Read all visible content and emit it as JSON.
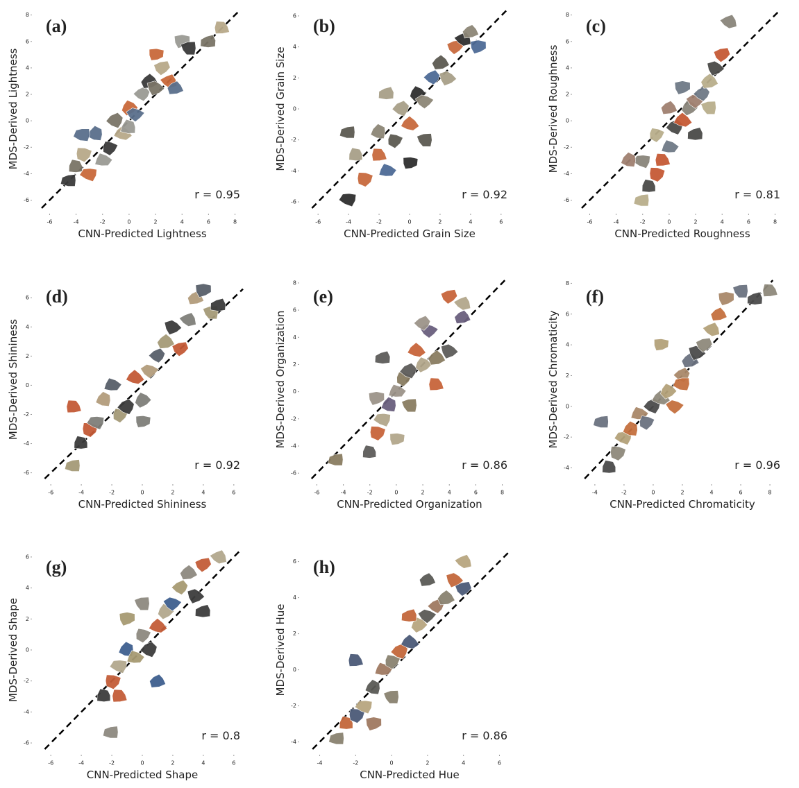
{
  "chart_data": [
    {
      "type": "scatter",
      "label": "(a)",
      "xlabel": "CNN-Predicted Lightness",
      "ylabel": "MDS-Derived Lightness",
      "annotation": "r = 0.95",
      "xlim": [
        -6.6,
        8.6
      ],
      "ylim": [
        -6.6,
        8.4
      ],
      "xticks": [
        -6,
        -4,
        -2,
        0,
        2,
        4,
        6,
        8
      ],
      "yticks": [
        -6,
        -4,
        -2,
        0,
        2,
        4,
        6,
        8
      ],
      "x": [
        -4.5,
        -4,
        -3.5,
        -3,
        -2.5,
        -2,
        -1.5,
        -1,
        -0.5,
        0,
        0.5,
        1,
        1.5,
        2,
        2.5,
        3,
        3.5,
        4,
        4.5,
        6,
        7,
        2,
        -3.5,
        0
      ],
      "values": [
        -4.5,
        -3.5,
        -2.5,
        -4,
        -1,
        -3,
        -2,
        0,
        -1,
        1,
        0.5,
        2,
        3,
        2.5,
        4,
        3,
        2.5,
        6,
        5.5,
        6,
        7,
        5,
        -1,
        -0.5
      ],
      "colors": [
        "#3b3b3b",
        "#7a7467",
        "#b8a98a",
        "#c9693a",
        "#5a6f8c",
        "#9a9a94"
      ]
    },
    {
      "type": "scatter",
      "label": "(b)",
      "xlabel": "CNN-Predicted Grain Size",
      "ylabel": "MDS-Derived Grain Size",
      "annotation": "r = 0.92",
      "xlim": [
        -6.6,
        6.6
      ],
      "ylim": [
        -6.4,
        6.4
      ],
      "xticks": [
        -6,
        -4,
        -2,
        0,
        2,
        4,
        6
      ],
      "yticks": [
        -6,
        -4,
        -2,
        0,
        2,
        4,
        6
      ],
      "x": [
        -4,
        -3.5,
        -3,
        -4,
        -2,
        -1.5,
        -1,
        -0.5,
        0,
        0.5,
        1,
        1.5,
        2,
        2.5,
        3,
        3.5,
        4,
        4.5,
        1,
        -1.5,
        -2,
        0
      ],
      "values": [
        -1.5,
        -3,
        -4.5,
        -5.8,
        -1.5,
        -4,
        -2,
        0,
        -1,
        1,
        0.5,
        2,
        3,
        2,
        4,
        4.5,
        5,
        4,
        -2,
        1,
        -3,
        -3.5
      ],
      "colors": [
        "#5c5a52",
        "#a8a088",
        "#c86a3e",
        "#2f2f2f",
        "#8d8677",
        "#4e6b96"
      ]
    },
    {
      "type": "scatter",
      "label": "(c)",
      "xlabel": "CNN-Predicted Roughness",
      "ylabel": "MDS-Derived Roughness",
      "annotation": "r = 0.81",
      "xlim": [
        -6.6,
        8.6
      ],
      "ylim": [
        -6.6,
        8.4
      ],
      "xticks": [
        -6,
        -4,
        -2,
        0,
        2,
        4,
        6,
        8
      ],
      "yticks": [
        -6,
        -4,
        -2,
        0,
        2,
        4,
        6,
        8
      ],
      "x": [
        -2,
        -1.5,
        -1,
        -2,
        -3,
        0,
        -1,
        0.5,
        1,
        1.5,
        2,
        2.5,
        3,
        3.5,
        4,
        4.5,
        0,
        1,
        3,
        2,
        -0.5
      ],
      "values": [
        -6,
        -5,
        -4,
        -3,
        -3,
        -2,
        -1,
        -0.5,
        0,
        1,
        1.5,
        2,
        3,
        4,
        5,
        7.5,
        1,
        2.5,
        1,
        -1,
        -3
      ],
      "colors": [
        "#b9ae8c",
        "#4a4a48",
        "#c65a35",
        "#8a857b",
        "#a08070",
        "#6f7a86"
      ]
    },
    {
      "type": "scatter",
      "label": "(d)",
      "xlabel": "CNN-Predicted Shininess",
      "ylabel": "MDS-Derived Shininess",
      "annotation": "r = 0.92",
      "xlim": [
        -6.6,
        6.6
      ],
      "ylim": [
        -6.4,
        7.2
      ],
      "xticks": [
        -6,
        -4,
        -2,
        0,
        2,
        4,
        6
      ],
      "yticks": [
        -6,
        -4,
        -2,
        0,
        2,
        4,
        6
      ],
      "x": [
        -4.5,
        -4,
        -3.5,
        -3,
        -2.5,
        -2,
        -1.5,
        -1,
        -0.5,
        0,
        0.5,
        1,
        1.5,
        2,
        2.5,
        3,
        3.5,
        4,
        4.5,
        5,
        -4.5,
        0
      ],
      "values": [
        -5.5,
        -4,
        -3,
        -2.5,
        -1,
        0,
        -2,
        -1.5,
        0.5,
        -1,
        1,
        2,
        3,
        4,
        2.5,
        4.5,
        6,
        6.5,
        5,
        5.5,
        -1.5,
        -2.5
      ],
      "colors": [
        "#a59a78",
        "#3c3c3c",
        "#c45a36",
        "#7f7f7a",
        "#b39c7c",
        "#585f6a"
      ]
    },
    {
      "type": "scatter",
      "label": "(e)",
      "xlabel": "CNN-Predicted Organization",
      "ylabel": "MDS-Derived Organization",
      "annotation": "r = 0.86",
      "xlim": [
        -6.6,
        8.6
      ],
      "ylim": [
        -6.4,
        8.2
      ],
      "xticks": [
        -6,
        -4,
        -2,
        0,
        2,
        4,
        6,
        8
      ],
      "yticks": [
        -6,
        -4,
        -2,
        0,
        2,
        4,
        6,
        8
      ],
      "x": [
        -4.5,
        -2,
        -1.5,
        -1,
        -0.5,
        0,
        0.5,
        1,
        1.5,
        2,
        2.5,
        2,
        3,
        4,
        4,
        5,
        5,
        -1.5,
        1,
        -1,
        3,
        0
      ],
      "values": [
        -5,
        -4.5,
        -3,
        -2,
        -1,
        0,
        1,
        1.5,
        3,
        2,
        4.5,
        5,
        2.5,
        3,
        7,
        6.5,
        5.5,
        -0.5,
        -1,
        2.5,
        0.5,
        -3.5
      ],
      "colors": [
        "#8a7d62",
        "#5d5c5a",
        "#c8653b",
        "#b3a78c",
        "#6a5f7e",
        "#9c948a"
      ]
    },
    {
      "type": "scatter",
      "label": "(f)",
      "xlabel": "CNN-Predicted Chromaticity",
      "ylabel": "MDS-Derived Chromaticity",
      "annotation": "r = 0.96",
      "xlim": [
        -4.9,
        8.9
      ],
      "ylim": [
        -4.7,
        8.2
      ],
      "xticks": [
        -4,
        -2,
        0,
        2,
        4,
        6,
        8
      ],
      "yticks": [
        -4,
        -2,
        0,
        2,
        4,
        6,
        8
      ],
      "x": [
        -3.5,
        -3,
        -2.5,
        -2,
        -1.5,
        -1,
        -0.5,
        0,
        0.5,
        1,
        1.5,
        2,
        2.5,
        3,
        3.5,
        4,
        4.5,
        5,
        6,
        7,
        8,
        0.5,
        2
      ],
      "values": [
        -1,
        -4,
        -3,
        -2,
        -1.5,
        -0.5,
        -1,
        0,
        0.5,
        1,
        0,
        2,
        3,
        3.5,
        4,
        5,
        6,
        7,
        7.5,
        7,
        7.5,
        4,
        1.5
      ],
      "colors": [
        "#6b7280",
        "#4b4b4b",
        "#8f8a7c",
        "#b4a27a",
        "#c5703f",
        "#a9886a"
      ]
    },
    {
      "type": "scatter",
      "label": "(g)",
      "xlabel": "CNN-Predicted Shape",
      "ylabel": "MDS-Derived Shape",
      "annotation": "r = 0.8",
      "xlim": [
        -6.6,
        6.6
      ],
      "ylim": [
        -6.4,
        6.4
      ],
      "xticks": [
        -6,
        -4,
        -2,
        0,
        2,
        4,
        6
      ],
      "yticks": [
        -6,
        -4,
        -2,
        0,
        2,
        4,
        6
      ],
      "x": [
        -2,
        -2.5,
        -2,
        -1.5,
        -1,
        -0.5,
        0,
        0.5,
        1,
        1.5,
        2,
        2.5,
        3,
        3.5,
        4,
        5,
        1,
        -1,
        0,
        4,
        -1.5
      ],
      "values": [
        -5.3,
        -3,
        -2,
        -1,
        0,
        -0.5,
        1,
        0,
        1.5,
        2.5,
        3,
        4,
        5,
        3.5,
        5.5,
        6,
        -2,
        2,
        3,
        2.5,
        -3
      ],
      "colors": [
        "#8e8a80",
        "#3d3d3d",
        "#c45d38",
        "#b3a88e",
        "#3f5f8f",
        "#a79a72"
      ]
    },
    {
      "type": "scatter",
      "label": "(h)",
      "xlabel": "CNN-Predicted Hue",
      "ylabel": "MDS-Derived Hue",
      "annotation": "r = 0.86",
      "xlim": [
        -4.6,
        6.6
      ],
      "ylim": [
        -4.4,
        6.6
      ],
      "xticks": [
        -4,
        -2,
        0,
        2,
        4,
        6
      ],
      "yticks": [
        -4,
        -2,
        0,
        2,
        4,
        6
      ],
      "x": [
        -3,
        -2.5,
        -2,
        -1.5,
        -1,
        -0.5,
        0,
        0.5,
        1,
        1.5,
        2,
        2.5,
        3,
        3.5,
        4,
        4,
        2,
        -1,
        0,
        1,
        -2
      ],
      "values": [
        -3.8,
        -3,
        -2.5,
        -2,
        -1,
        0,
        0.5,
        1,
        1.5,
        2.5,
        3,
        3.5,
        4,
        5,
        4.5,
        6,
        5,
        -3,
        -1.5,
        3,
        0.5
      ],
      "colors": [
        "#8a8270",
        "#c4683c",
        "#4b5a78",
        "#b8a680",
        "#5a5a56",
        "#a07a62"
      ]
    }
  ]
}
